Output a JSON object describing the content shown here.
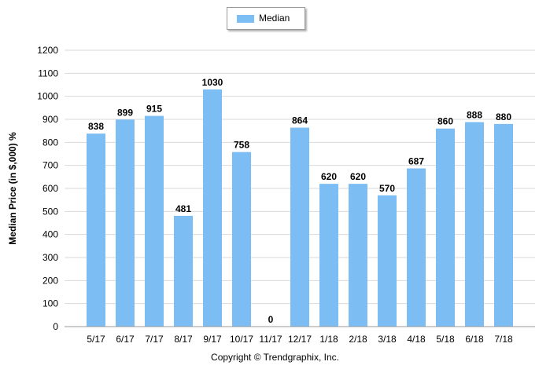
{
  "legend": {
    "label": "Median",
    "color": "#7cbdf3"
  },
  "copyright": "Copyright © Trendgraphix, Inc.",
  "chart_data": {
    "type": "bar",
    "title": "",
    "xlabel": "",
    "ylabel": "Median Price (in $,000) %",
    "ylim": [
      0,
      1200
    ],
    "yticks": [
      0,
      100,
      200,
      300,
      400,
      500,
      600,
      700,
      800,
      900,
      1000,
      1100,
      1200
    ],
    "grid": true,
    "legend_position": "top-center",
    "categories": [
      "5/17",
      "6/17",
      "7/17",
      "8/17",
      "9/17",
      "10/17",
      "11/17",
      "12/17",
      "1/18",
      "2/18",
      "3/18",
      "4/18",
      "5/18",
      "6/18",
      "7/18"
    ],
    "series": [
      {
        "name": "Median",
        "color": "#7cbdf3",
        "values": [
          838,
          899,
          915,
          481,
          1030,
          758,
          0,
          864,
          620,
          620,
          570,
          687,
          860,
          888,
          880
        ]
      }
    ]
  }
}
